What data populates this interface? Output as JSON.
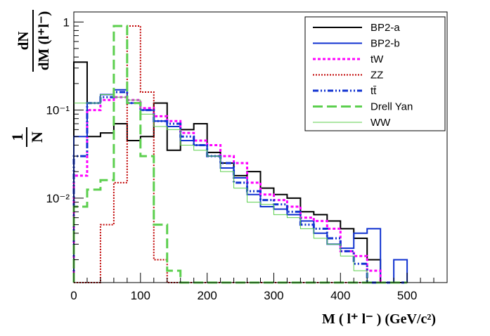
{
  "chart_data": {
    "type": "line",
    "style": "step-histogram",
    "title": "",
    "xlabel": "M ( l⁺ l⁻ ) (GeV/c²)",
    "ylabel_numerator": "dN",
    "ylabel_denominator": "dM (l⁺l⁻)",
    "ylabel_factor_num": "1",
    "ylabel_factor_den": "N",
    "xlim": [
      0,
      560
    ],
    "ylim": [
      0.0011,
      1.3
    ],
    "yscale": "log",
    "x_ticks": [
      0,
      100,
      200,
      300,
      400,
      500
    ],
    "x_tick_labels": [
      "0",
      "100",
      "200",
      "300",
      "400",
      "500"
    ],
    "y_tick_labels": [
      "1",
      "10⁻¹",
      "10⁻²"
    ],
    "grid": false,
    "legend_position": "top-right",
    "bin_edges": [
      0,
      20,
      40,
      60,
      80,
      100,
      120,
      140,
      160,
      180,
      200,
      220,
      240,
      260,
      280,
      300,
      320,
      340,
      360,
      380,
      400,
      420,
      440,
      460,
      480,
      500
    ],
    "series": [
      {
        "name": "BP2-a",
        "color": "#000000",
        "dash": "solid",
        "width": 2,
        "values": [
          0.35,
          0.05,
          0.055,
          0.07,
          0.045,
          0.05,
          0.12,
          0.035,
          0.06,
          0.07,
          0.033,
          0.025,
          0.018,
          0.02,
          0.013,
          0.011,
          0.01,
          0.007,
          0.0065,
          0.0055,
          0.0045,
          0.0035,
          0.002,
          0.0011,
          0.0011
        ]
      },
      {
        "name": "BP2-b",
        "color": "#1032d0",
        "dash": "solid",
        "width": 2,
        "values": [
          0.05,
          0.12,
          0.15,
          0.17,
          0.12,
          0.1,
          0.075,
          0.065,
          0.045,
          0.04,
          0.03,
          0.022,
          0.017,
          0.011,
          0.008,
          0.0075,
          0.0065,
          0.0055,
          0.004,
          0.003,
          0.0027,
          0.004,
          0.0045,
          0.0011,
          0.002
        ]
      },
      {
        "name": "tW",
        "color": "#ff00ff",
        "dash": "4,3",
        "width": 3,
        "values": [
          0.018,
          0.1,
          0.13,
          0.14,
          0.13,
          0.105,
          0.085,
          0.075,
          0.055,
          0.045,
          0.04,
          0.03,
          0.025,
          0.015,
          0.011,
          0.0095,
          0.008,
          0.006,
          0.0055,
          0.0045,
          0.0025,
          0.0022,
          0.0015,
          0.0011,
          0.0011
        ]
      },
      {
        "name": "ZZ",
        "color": "#c00000",
        "dash": "2,2",
        "width": 2,
        "values": [
          0.0011,
          0.0011,
          0.005,
          0.015,
          0.9,
          0.16,
          0.002,
          0.0011,
          0.0011,
          0.0011,
          0.0011,
          0.0011,
          0.0011,
          0.0011,
          0.0011,
          0.0011,
          0.0011,
          0.0011,
          0.0011,
          0.0011,
          0.0011,
          0.0011,
          0.0011,
          0.0011,
          0.0011
        ]
      },
      {
        "name": "tt̄",
        "color": "#1032d0",
        "dash": "8,3,2,3,2,3",
        "width": 3,
        "values": [
          0.03,
          0.12,
          0.14,
          0.16,
          0.12,
          0.1,
          0.075,
          0.07,
          0.05,
          0.04,
          0.03,
          0.025,
          0.015,
          0.012,
          0.0095,
          0.0085,
          0.007,
          0.005,
          0.0045,
          0.0035,
          0.0025,
          0.0018,
          0.0011,
          0.0011,
          0.0011
        ]
      },
      {
        "name": "Drell Yan",
        "color": "#5ccf4e",
        "dash": "14,6",
        "width": 3,
        "values": [
          0.008,
          0.0125,
          0.016,
          0.9,
          0.12,
          0.03,
          0.005,
          0.0015,
          0.0011,
          0.0011,
          0.0011,
          0.0011,
          0.0011,
          0.0011,
          0.0011,
          0.0011,
          0.0011,
          0.0011,
          0.0011,
          0.0011,
          0.0011,
          0.0011,
          0.0011,
          0.0011,
          0.0011
        ]
      },
      {
        "name": "WW",
        "color": "#5ccf4e",
        "dash": "solid",
        "width": 1,
        "values": [
          0.12,
          0.12,
          0.15,
          0.14,
          0.13,
          0.09,
          0.065,
          0.06,
          0.04,
          0.035,
          0.03,
          0.02,
          0.013,
          0.009,
          0.0085,
          0.0065,
          0.006,
          0.0045,
          0.0035,
          0.003,
          0.0022,
          0.0015,
          0.0011,
          0.0011,
          0.0011
        ]
      }
    ]
  }
}
